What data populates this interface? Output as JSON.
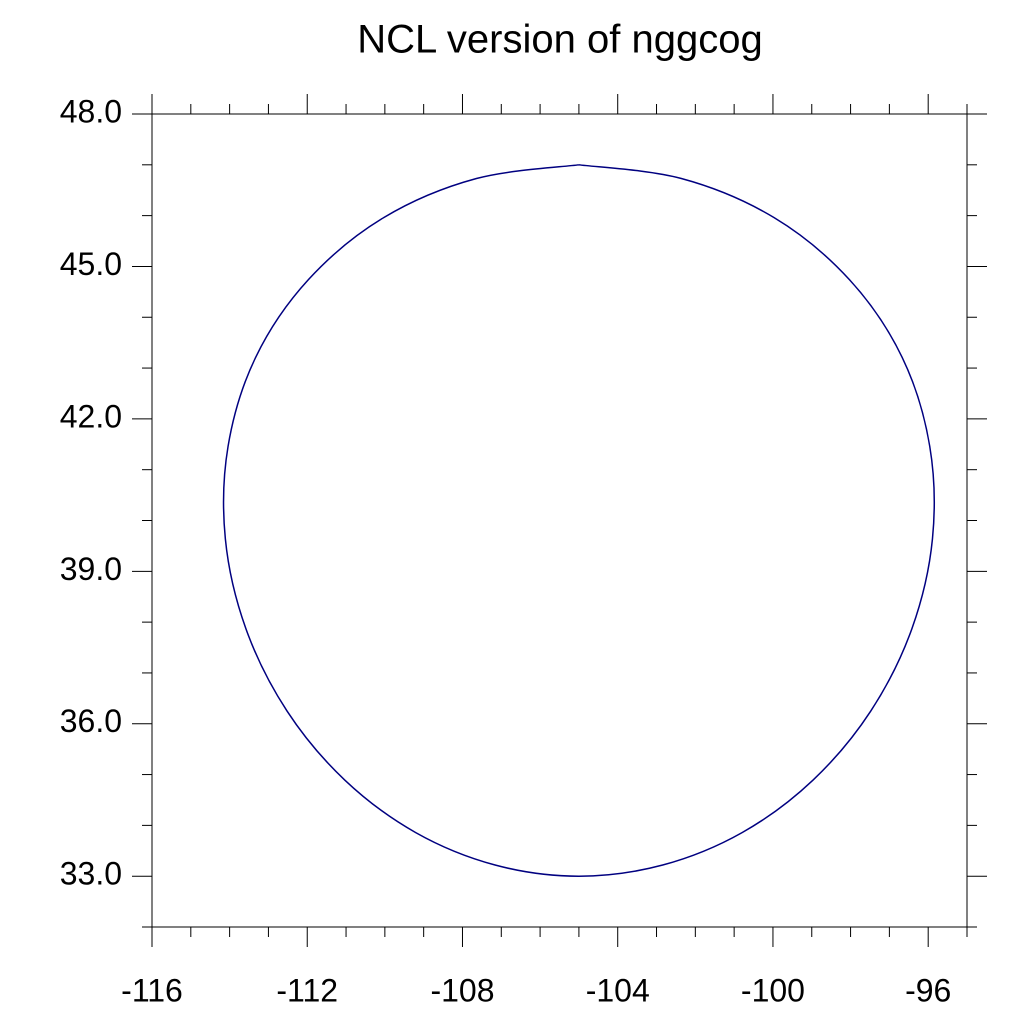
{
  "chart_data": {
    "type": "line",
    "title": "NCL version of nggcog",
    "x": [
      -105,
      -102.36,
      -99.97,
      -98.03,
      -96.67,
      -95.96,
      -95.89,
      -96.42,
      -97.48,
      -98.97,
      -100.79,
      -102.84,
      -105,
      -107.16,
      -109.21,
      -111.03,
      -112.52,
      -113.58,
      -114.11,
      -114.04,
      -113.33,
      -111.97,
      -110.03,
      -107.64,
      -105
    ],
    "series": [
      {
        "color": "#000080",
        "values": [
          47.0,
          46.73,
          45.96,
          44.74,
          43.21,
          41.46,
          39.64,
          37.87,
          36.25,
          34.89,
          33.86,
          33.22,
          33.0,
          33.22,
          33.86,
          34.89,
          36.25,
          37.87,
          39.64,
          41.46,
          43.21,
          44.74,
          45.96,
          46.73,
          47.0
        ]
      }
    ],
    "xlim": [
      -116,
      -95
    ],
    "ylim": [
      32,
      48
    ],
    "xticks": [
      -116,
      -112,
      -108,
      -104,
      -100,
      -96
    ],
    "yticks": [
      {
        "value": 33,
        "label": "33.0"
      },
      {
        "value": 36,
        "label": "36.0"
      },
      {
        "value": 39,
        "label": "39.0"
      },
      {
        "value": 42,
        "label": "42.0"
      },
      {
        "value": 45,
        "label": "45.0"
      },
      {
        "value": 48,
        "label": "48.0"
      }
    ],
    "xminorticks": [
      -115,
      -114,
      -113,
      -111,
      -110,
      -109,
      -107,
      -106,
      -105,
      -103,
      -102,
      -101,
      -99,
      -98,
      -97,
      -95
    ],
    "yminorticks": [
      32,
      34,
      35,
      37,
      38,
      40,
      41,
      43,
      44,
      46,
      47
    ],
    "grid": false
  }
}
